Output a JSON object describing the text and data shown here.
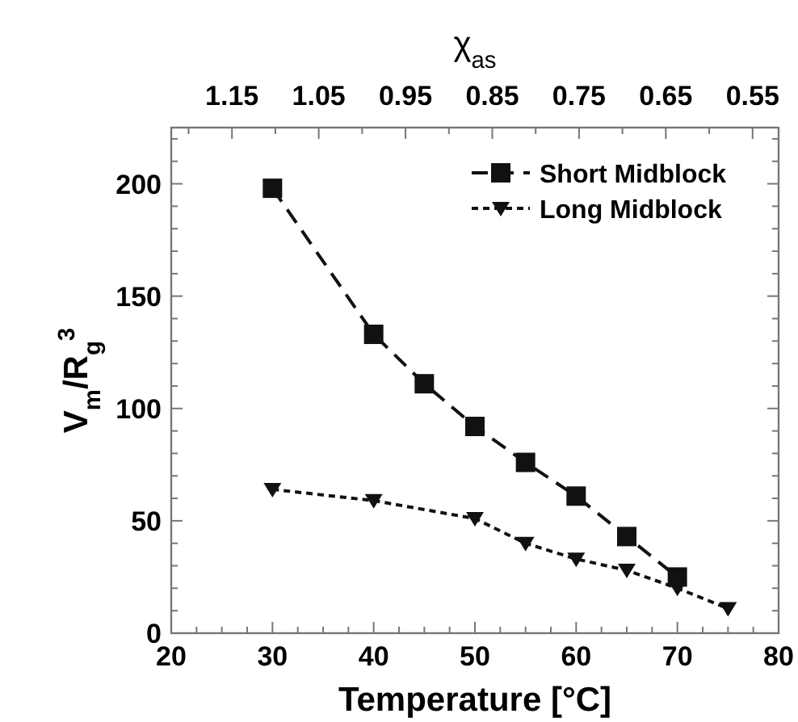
{
  "chart_data": {
    "type": "line",
    "xlabel": "Temperature [°C]",
    "ylabel": "V$_{m}$/R$_{g}$$^{3}$",
    "x2label": "χ$_{as}$",
    "xlim": [
      20,
      80
    ],
    "xticks": [
      20,
      {
        "value": 22.5,
        "label": null
      },
      {
        "value": 25,
        "label": null
      },
      {
        "value": 27.5,
        "label": null
      },
      30,
      {
        "value": 32.5,
        "label": null
      },
      {
        "value": 35,
        "label": null
      },
      {
        "value": 37.5,
        "label": null
      },
      40,
      {
        "value": 42.5,
        "label": null
      },
      {
        "value": 45,
        "label": null
      },
      {
        "value": 47.5,
        "label": null
      },
      50,
      {
        "value": 52.5,
        "label": null
      },
      {
        "value": 55,
        "label": null
      },
      {
        "value": 57.5,
        "label": null
      },
      60,
      {
        "value": 62.5,
        "label": null
      },
      {
        "value": 65,
        "label": null
      },
      {
        "value": 67.5,
        "label": null
      },
      70,
      {
        "value": 72.5,
        "label": null
      },
      {
        "value": 75,
        "label": null
      },
      {
        "value": 77.5,
        "label": null
      },
      80
    ],
    "ylim": [
      0,
      225
    ],
    "yticks": [
      0,
      {
        "value": 10,
        "label": null
      },
      {
        "value": 20,
        "label": null
      },
      {
        "value": 30,
        "label": null
      },
      {
        "value": 40,
        "label": null
      },
      50,
      {
        "value": 60,
        "label": null
      },
      {
        "value": 70,
        "label": null
      },
      {
        "value": 80,
        "label": null
      },
      {
        "value": 90,
        "label": null
      },
      100,
      {
        "value": 110,
        "label": null
      },
      {
        "value": 120,
        "label": null
      },
      {
        "value": 130,
        "label": null
      },
      {
        "value": 140,
        "label": null
      },
      150,
      {
        "value": 160,
        "label": null
      },
      {
        "value": 170,
        "label": null
      },
      {
        "value": 180,
        "label": null
      },
      {
        "value": 190,
        "label": null
      },
      200,
      {
        "value": 210,
        "label": null
      },
      {
        "value": 220,
        "label": null
      }
    ],
    "x2lim": [
      1.22,
      0.52
    ],
    "x2ticks": [
      {
        "value": 1.2,
        "label": null
      },
      {
        "value": 1.15,
        "label": "1.15"
      },
      {
        "value": 1.1,
        "label": null
      },
      {
        "value": 1.05,
        "label": "1.05"
      },
      {
        "value": 1.0,
        "label": null
      },
      {
        "value": 0.95,
        "label": "0.95"
      },
      {
        "value": 0.9,
        "label": null
      },
      {
        "value": 0.85,
        "label": "0.85"
      },
      {
        "value": 0.8,
        "label": null
      },
      {
        "value": 0.75,
        "label": "0.75"
      },
      {
        "value": 0.7,
        "label": null
      },
      {
        "value": 0.65,
        "label": "0.65"
      },
      {
        "value": 0.6,
        "label": null
      },
      {
        "value": 0.55,
        "label": "0.55"
      }
    ],
    "legend": "top right",
    "grid": false,
    "series": [
      {
        "name": "Short Midblock",
        "color": "#111111",
        "marker": "square",
        "line_style": "dashed",
        "x": [
          30,
          40,
          45,
          50,
          55,
          60,
          65,
          70
        ],
        "values": [
          198,
          133,
          111,
          92,
          76,
          61,
          43,
          25
        ]
      },
      {
        "name": "Long Midblock",
        "color": "#111111",
        "marker": "triangle",
        "line_style": "dotted",
        "x": [
          30,
          40,
          50,
          55,
          60,
          65,
          70,
          75
        ],
        "values": [
          64,
          59,
          51,
          40,
          33,
          28,
          20,
          11
        ]
      }
    ]
  }
}
